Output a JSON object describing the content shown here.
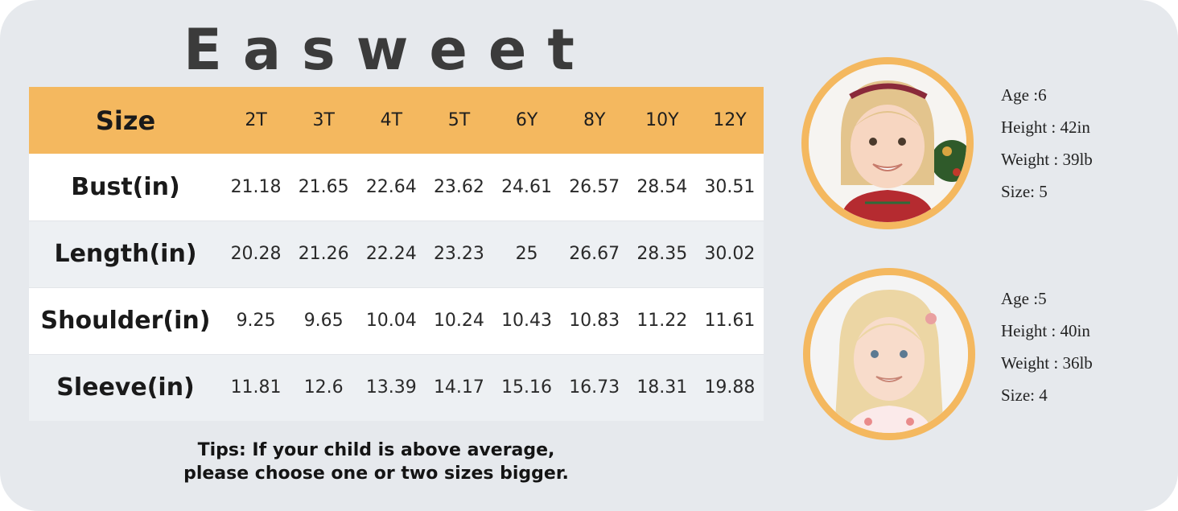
{
  "brand": "Easweet",
  "table": {
    "header_label": "Size",
    "sizes": [
      "2T",
      "3T",
      "4T",
      "5T",
      "6Y",
      "8Y",
      "10Y",
      "12Y"
    ],
    "rows": [
      {
        "label": "Bust(in)",
        "values": [
          "21.18",
          "21.65",
          "22.64",
          "23.62",
          "24.61",
          "26.57",
          "28.54",
          "30.51"
        ]
      },
      {
        "label": "Length(in)",
        "values": [
          "20.28",
          "21.26",
          "22.24",
          "23.23",
          "25",
          "26.67",
          "28.35",
          "30.02"
        ]
      },
      {
        "label": "Shoulder(in)",
        "values": [
          "9.25",
          "9.65",
          "10.04",
          "10.24",
          "10.43",
          "10.83",
          "11.22",
          "11.61"
        ]
      },
      {
        "label": "Sleeve(in)",
        "values": [
          "11.81",
          "12.6",
          "13.39",
          "14.17",
          "15.16",
          "16.73",
          "18.31",
          "19.88"
        ]
      }
    ]
  },
  "tips": {
    "line1": "Tips: If your child is above average,",
    "line2": "please choose one or two sizes bigger."
  },
  "models": [
    {
      "age": "Age :6",
      "height": "Height : 42in",
      "weight": "Weight : 39lb",
      "size": "Size: 5"
    },
    {
      "age": "Age :5",
      "height": "Height : 40in",
      "weight": "Weight : 36lb",
      "size": "Size: 4"
    }
  ],
  "colors": {
    "accent": "#f4b85f",
    "background": "#e6e9ed",
    "text_dark": "#1a1a1a"
  }
}
